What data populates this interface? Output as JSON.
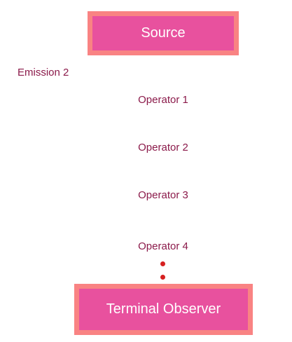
{
  "source": {
    "label": "Source"
  },
  "emission": {
    "label": "Emission 2"
  },
  "operators": [
    {
      "label": "Operator 1"
    },
    {
      "label": "Operator 2"
    },
    {
      "label": "Operator 3"
    },
    {
      "label": "Operator 4"
    }
  ],
  "terminal": {
    "label": "Terminal Observer"
  },
  "colors": {
    "box_fill": "#e8519e",
    "box_border": "#f98383",
    "label_text": "#8b1a4a",
    "dot": "#d62020"
  }
}
